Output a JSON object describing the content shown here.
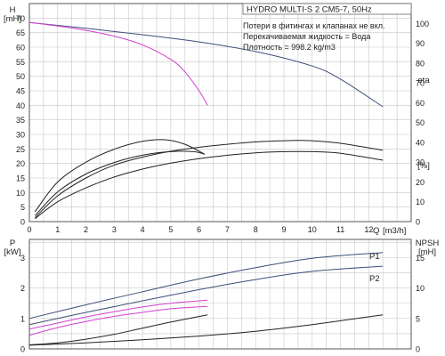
{
  "chart_data": [
    {
      "type": "line",
      "title": "HYDRO MULTI-S 2 CM5-7, 50Hz",
      "notes": [
        "Потери в фитингах и клапанах не вкл.",
        "Перекачиваемая жидкость = Вода",
        "Плотность = 998.2 kg/m3"
      ],
      "ylabel_left": [
        "H",
        "[mH]"
      ],
      "ylabel_right": "eta",
      "ylabel_right_unit": "[%]",
      "xlabel_q": "Q",
      "xlabel_unit": "[m3/h]",
      "xlim": [
        0,
        13.5
      ],
      "x_ticks": [
        "0",
        "1",
        "2",
        "3",
        "4",
        "5",
        "6",
        "7",
        "8",
        "9",
        "10",
        "11",
        "12"
      ],
      "ylim_left": [
        0,
        75
      ],
      "y_ticks_left": [
        "0",
        "5",
        "10",
        "15",
        "20",
        "25",
        "30",
        "35",
        "40",
        "45",
        "50",
        "55",
        "60",
        "65",
        "70"
      ],
      "ylim_right": [
        0,
        110
      ],
      "y_ticks_right": [
        "0",
        "10",
        "20",
        "30",
        "40",
        "50",
        "60",
        "70",
        "80",
        "90",
        "100"
      ],
      "grid": true,
      "colors": {
        "head": "#3d4f78",
        "npsh": "#d23fd2",
        "eta": "#222222",
        "grid": "#c8c8c8",
        "axis": "#555555"
      },
      "series": [
        {
          "role": "head",
          "axis": "left",
          "x": [
            0,
            2,
            4,
            6,
            8,
            10,
            11,
            12.5
          ],
          "y": [
            68.5,
            66.5,
            64.3,
            61.8,
            58.5,
            53.5,
            49,
            39.5
          ]
        },
        {
          "role": "npsh",
          "axis": "left",
          "x": [
            0,
            1,
            2,
            3,
            4,
            5,
            5.5,
            6,
            6.3
          ],
          "y": [
            68.5,
            67.3,
            65.8,
            63.8,
            60.8,
            55.8,
            51.5,
            45,
            40
          ]
        },
        {
          "role": "eta",
          "axis": "right",
          "x": [
            0.2,
            1,
            2,
            3,
            4,
            4.8,
            5.5,
            6.2
          ],
          "y": [
            5,
            20,
            30,
            36.5,
            40.5,
            41.3,
            39,
            34
          ]
        },
        {
          "role": "eta",
          "axis": "right",
          "x": [
            0.2,
            1,
            2,
            3,
            4,
            5,
            5.8,
            6.2
          ],
          "y": [
            3,
            15,
            24,
            29.8,
            33.5,
            35.3,
            35.3,
            34
          ]
        },
        {
          "role": "eta",
          "axis": "right",
          "x": [
            0.2,
            1,
            2,
            3,
            4,
            5,
            6,
            7,
            8,
            9,
            9.5,
            10,
            11,
            12.5
          ],
          "y": [
            2,
            13,
            22,
            28.5,
            32.5,
            35.5,
            37.5,
            39,
            40.2,
            40.8,
            41,
            40.8,
            39.5,
            36
          ]
        },
        {
          "role": "eta",
          "axis": "right",
          "x": [
            0.2,
            1,
            2,
            3,
            4,
            5,
            6,
            7,
            8,
            9,
            10,
            11,
            12.5
          ],
          "y": [
            1.5,
            10,
            17,
            22.5,
            26.5,
            29.5,
            31.8,
            33.5,
            34.7,
            35.3,
            35.3,
            34.5,
            31
          ]
        }
      ]
    },
    {
      "type": "line",
      "ylabel_left": [
        "P",
        "[kW]"
      ],
      "ylabel_right": [
        "NPSH",
        "[mH]"
      ],
      "xlim": [
        0,
        13.5
      ],
      "ylim_left": [
        0,
        3.6
      ],
      "y_ticks_left": [
        "0",
        "1",
        "2",
        "3"
      ],
      "ylim_right": [
        0,
        18
      ],
      "y_ticks_right": [
        "0",
        "5",
        "10",
        "15"
      ],
      "grid": true,
      "annotations": [
        "P1",
        "P2"
      ],
      "series": [
        {
          "name": "P1",
          "role": "p1",
          "axis": "left",
          "x": [
            0,
            2,
            4,
            6,
            8,
            10,
            12.5
          ],
          "y": [
            1.0,
            1.45,
            1.88,
            2.3,
            2.67,
            2.98,
            3.17
          ]
        },
        {
          "name": "P2",
          "role": "p2",
          "axis": "left",
          "x": [
            0,
            2,
            4,
            6,
            8,
            10,
            12.5
          ],
          "y": [
            0.8,
            1.2,
            1.58,
            1.95,
            2.28,
            2.55,
            2.72
          ]
        },
        {
          "role": "npsh",
          "axis": "left",
          "x": [
            0,
            1,
            2,
            3,
            4,
            5,
            6.3
          ],
          "y": [
            0.65,
            0.85,
            1.05,
            1.22,
            1.38,
            1.5,
            1.6
          ]
        },
        {
          "role": "npsh",
          "axis": "left",
          "x": [
            0,
            1,
            2,
            3,
            4,
            5,
            6.3
          ],
          "y": [
            0.45,
            0.7,
            0.9,
            1.07,
            1.2,
            1.32,
            1.4
          ]
        },
        {
          "role": "eta",
          "axis": "left",
          "x": [
            0,
            1,
            2,
            3,
            4,
            5,
            6.3
          ],
          "y": [
            0.13,
            0.2,
            0.32,
            0.48,
            0.68,
            0.88,
            1.12
          ]
        },
        {
          "role": "eta",
          "axis": "left",
          "x": [
            0,
            2,
            4,
            6,
            8,
            10,
            12.5
          ],
          "y": [
            0.12,
            0.2,
            0.3,
            0.42,
            0.58,
            0.8,
            1.12
          ]
        }
      ]
    }
  ]
}
